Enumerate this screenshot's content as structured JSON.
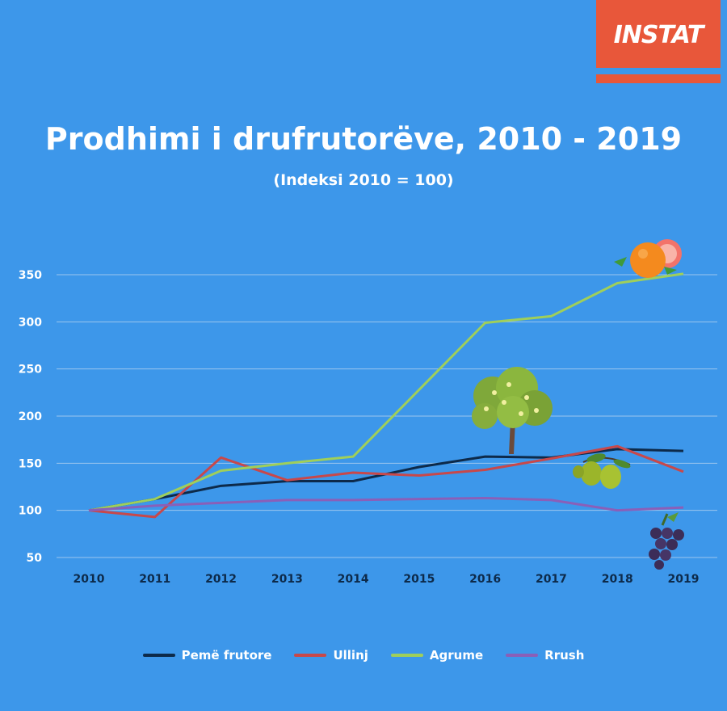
{
  "logo": {
    "text": "INSTAT"
  },
  "chart_data": {
    "type": "line",
    "title": "Prodhimi i drufrutorëve, 2010 - 2019",
    "subtitle": "(Indeksi 2010 = 100)",
    "x": [
      "2010",
      "2011",
      "2012",
      "2013",
      "2014",
      "2015",
      "2016",
      "2017",
      "2018",
      "2019"
    ],
    "yticks": [
      50,
      100,
      150,
      200,
      250,
      300,
      350
    ],
    "ylim": [
      50,
      350
    ],
    "grid": true,
    "legend_position": "bottom",
    "series": [
      {
        "name": "Pemë frutore",
        "color": "#0d2a4a",
        "values": [
          100,
          112,
          126,
          131,
          131,
          146,
          157,
          156,
          165,
          163
        ]
      },
      {
        "name": "Ullinj",
        "color": "#c8484a",
        "values": [
          100,
          93,
          156,
          132,
          140,
          137,
          143,
          155,
          168,
          141
        ]
      },
      {
        "name": "Agrume",
        "color": "#9fcf5a",
        "values": [
          100,
          112,
          142,
          150,
          157,
          228,
          299,
          306,
          341,
          351
        ]
      },
      {
        "name": "Rrush",
        "color": "#8a5fb8",
        "values": [
          100,
          105,
          108,
          111,
          111,
          112,
          113,
          111,
          100,
          103
        ]
      }
    ]
  }
}
